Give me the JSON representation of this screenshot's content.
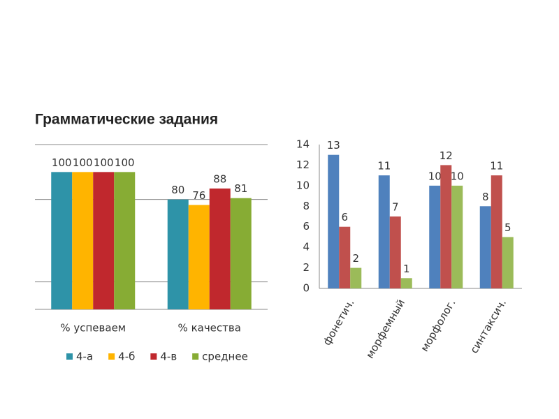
{
  "chart_data": [
    {
      "type": "bar",
      "title": "Грамматические задания",
      "categories": [
        "% успеваем",
        "% качества"
      ],
      "series": [
        {
          "name": "4-а",
          "color": "#2e93a8",
          "values": [
            100,
            80
          ]
        },
        {
          "name": "4-б",
          "color": "#ffb400",
          "values": [
            100,
            76
          ]
        },
        {
          "name": "4-в",
          "color": "#c0282d",
          "values": [
            100,
            88
          ]
        },
        {
          "name": "среднее",
          "color": "#87ac34",
          "values": [
            100,
            81
          ]
        }
      ],
      "ylim": [
        0,
        120
      ],
      "yticks": [
        20,
        80,
        120
      ],
      "tick_labels": false,
      "grid": true,
      "legend": "bottom"
    },
    {
      "type": "bar",
      "categories": [
        "фонетич.",
        "морфемный",
        "морфолог.",
        "синтаксич."
      ],
      "series": [
        {
          "color": "#4f81bd",
          "values": [
            13,
            11,
            10,
            8
          ]
        },
        {
          "color": "#c0504d",
          "values": [
            6,
            7,
            12,
            11
          ]
        },
        {
          "color": "#9bbb59",
          "values": [
            2,
            1,
            10,
            5
          ]
        }
      ],
      "ylim": [
        0,
        14
      ],
      "yticks": [
        0,
        2,
        4,
        6,
        8,
        10,
        12,
        14
      ],
      "tick_labels": true,
      "grid": false
    }
  ]
}
